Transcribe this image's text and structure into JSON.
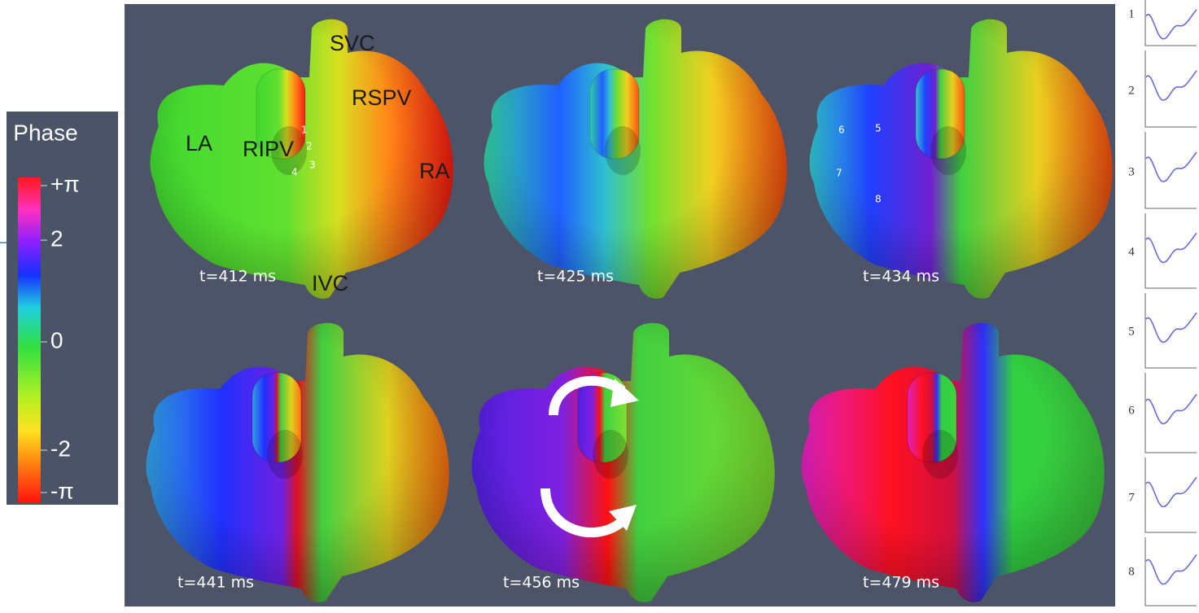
{
  "colorbar": {
    "title": "Phase",
    "tick_labels": [
      "+π",
      "2",
      "0",
      "-2",
      "-π"
    ]
  },
  "panels": [
    {
      "time": "t=412 ms",
      "labels": [
        "SVC",
        "RSPV",
        "LA",
        "RIPV",
        "RA",
        "IVC"
      ],
      "markers": [
        "1",
        "2",
        "3",
        "4"
      ]
    },
    {
      "time": "t=425 ms"
    },
    {
      "time": "t=434 ms",
      "markers": [
        "6",
        "5",
        "7",
        "8"
      ]
    },
    {
      "time": "t=441 ms"
    },
    {
      "time": "t=456 ms"
    },
    {
      "time": "t=479 ms"
    }
  ],
  "traces": [
    "1",
    "2",
    "3",
    "4",
    "5",
    "6",
    "7",
    "8"
  ]
}
